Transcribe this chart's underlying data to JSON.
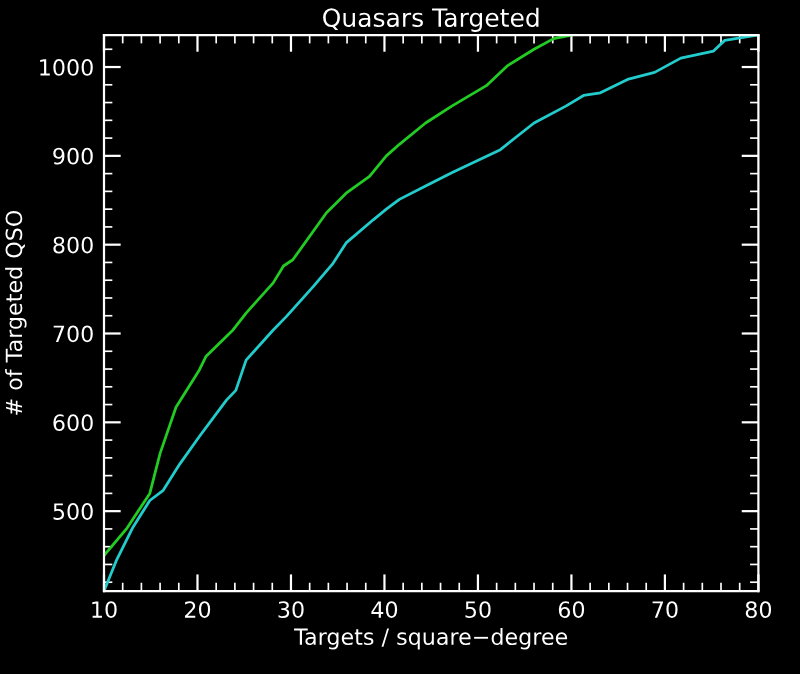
{
  "chart_data": {
    "type": "line",
    "title": "Quasars Targeted",
    "xlabel": "Targets / square−degree",
    "ylabel": "# of Targeted QSO",
    "xlim": [
      10,
      80
    ],
    "ylim": [
      410,
      1036
    ],
    "xticks": [
      10,
      20,
      30,
      40,
      50,
      60,
      70,
      80
    ],
    "yticks": [
      500,
      600,
      700,
      800,
      900,
      1000
    ],
    "grid": false,
    "marker": "none",
    "line_style": "solid",
    "series": [
      {
        "color": "#22cc22",
        "x": [
          10,
          12.4,
          14.9,
          16,
          17.7,
          20.2,
          20.9,
          23.8,
          25.2,
          28.1,
          29.2,
          30.2,
          33.8,
          35.9,
          38.4,
          40.2,
          41.6,
          44.4,
          47.2,
          50.9,
          53.1,
          56,
          58.1,
          60
        ],
        "values": [
          450,
          480,
          520,
          565,
          617,
          659,
          674,
          704,
          723,
          757,
          776,
          783,
          836,
          858,
          877,
          900,
          913,
          937,
          956,
          979,
          1001,
          1020,
          1032,
          1036
        ]
      },
      {
        "color": "#22cccc",
        "x": [
          10,
          11.3,
          13.1,
          14.9,
          16.3,
          18.1,
          20.2,
          23.1,
          24.1,
          25.2,
          28.1,
          29.5,
          32.4,
          34.5,
          35.9,
          38.8,
          40.2,
          41.6,
          44.4,
          47.2,
          52.4,
          56,
          59.4,
          61.3,
          63.1,
          66,
          68.9,
          71.7,
          75.2,
          76.4,
          78.2,
          80
        ],
        "values": [
          410,
          444,
          482,
          512,
          523,
          553,
          584,
          625,
          636,
          670,
          704,
          719,
          753,
          779,
          802,
          828,
          840,
          851,
          866,
          881,
          907,
          937,
          956,
          968,
          971,
          986,
          994,
          1010,
          1018,
          1030,
          1033,
          1036
        ]
      }
    ]
  }
}
